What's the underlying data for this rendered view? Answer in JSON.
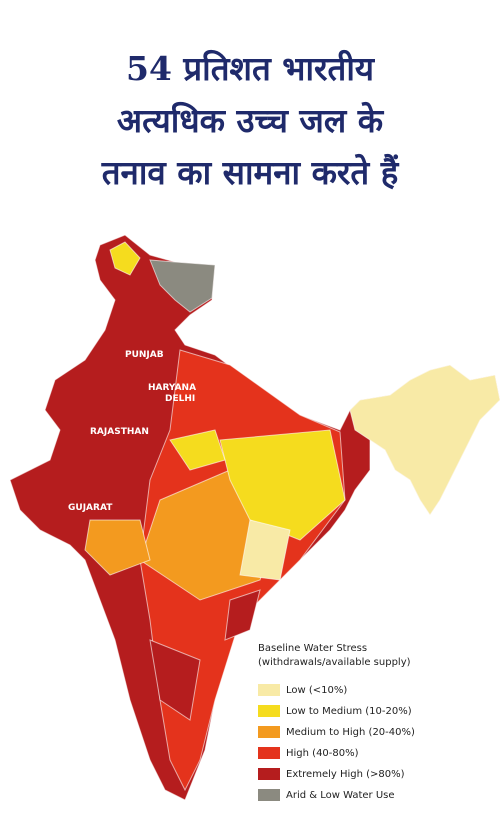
{
  "title_lines": [
    "54 प्रतिशत भारतीय",
    "अत्यधिक उच्च जल के",
    "तनाव का सामना करते हैं"
  ],
  "map_labels": [
    "PUNJAB",
    "HARYANA",
    "DELHI",
    "RAJASTHAN",
    "GUJARAT"
  ],
  "legend": {
    "title": "Baseline Water Stress",
    "subtitle": "(withdrawals/available supply)",
    "items": [
      {
        "label": "Low (<10%)",
        "color": "#f8eaa6"
      },
      {
        "label": "Low to Medium (10-20%)",
        "color": "#f5dc1e"
      },
      {
        "label": "Medium to High (20-40%)",
        "color": "#f39a1f"
      },
      {
        "label": "High (40-80%)",
        "color": "#e4331c"
      },
      {
        "label": "Extremely High (>80%)",
        "color": "#b51d1e"
      },
      {
        "label": "Arid & Low Water Use",
        "color": "#8b8a80"
      }
    ]
  }
}
